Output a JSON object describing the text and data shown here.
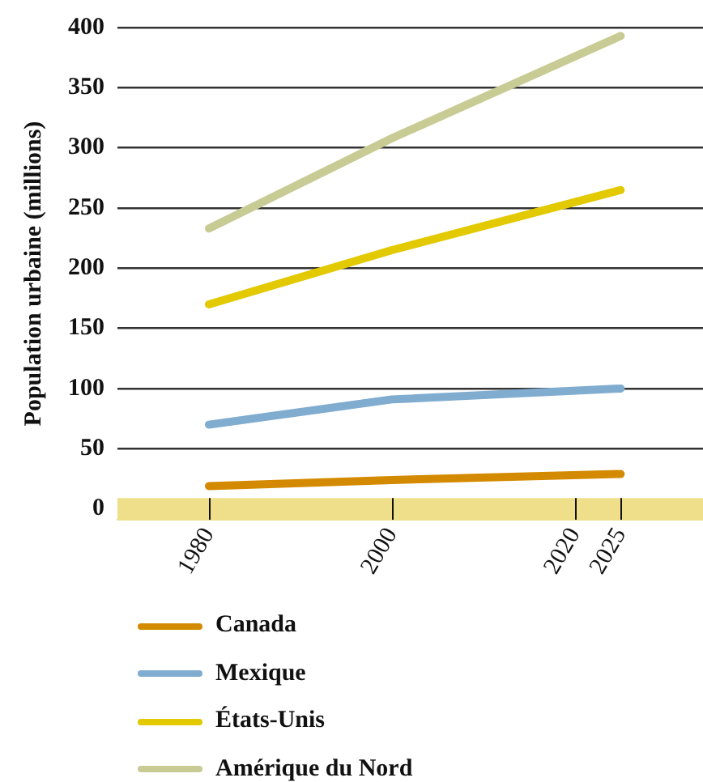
{
  "chart_data": {
    "type": "line",
    "ylabel": "Population urbaine (millions)",
    "x": [
      1980,
      2000,
      2025
    ],
    "xlim": [
      1970,
      2034
    ],
    "xticks": [
      1980,
      2000,
      2020,
      2025
    ],
    "ylim": [
      -9,
      400
    ],
    "yticks": [
      0,
      50,
      100,
      150,
      200,
      250,
      300,
      350,
      400
    ],
    "series": [
      {
        "name": "Canada",
        "color": "#d48a00",
        "values": [
          19,
          24,
          29
        ]
      },
      {
        "name": "Mexique",
        "color": "#80acd0",
        "values": [
          70,
          91,
          100
        ]
      },
      {
        "name": "États-Unis",
        "color": "#e2c900",
        "values": [
          170,
          215,
          265
        ]
      },
      {
        "name": "Amérique du Nord",
        "color": "#c8cb94",
        "values": [
          233,
          308,
          393
        ]
      }
    ],
    "bands": [
      {
        "axis": "y",
        "from": -9,
        "to": 9,
        "color": "#efdf8a"
      }
    ],
    "grid": "y",
    "legend": "bottom",
    "marker": "none",
    "line_style": "solid"
  }
}
